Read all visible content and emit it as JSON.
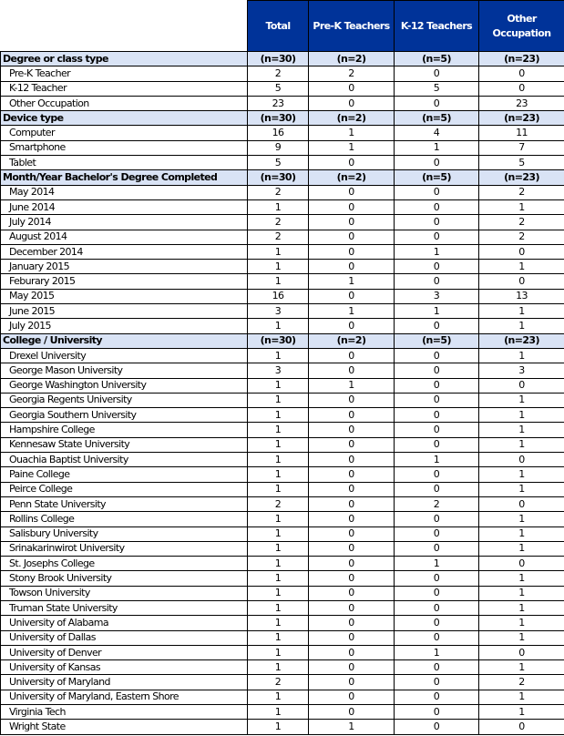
{
  "colors": {
    "header_bg": "#003399",
    "section_bg": "#d9e3f5"
  },
  "columns": [
    "Total",
    "Pre-K Teachers",
    "K-12  Teachers",
    "Other Occupation"
  ],
  "sections": [
    {
      "title": "Degree or class type",
      "counts": [
        "(n=30)",
        "(n=2)",
        "(n=5)",
        "(n=23)"
      ],
      "rows": [
        [
          "Pre-K Teacher",
          "2",
          "2",
          "0",
          "0"
        ],
        [
          "K-12 Teacher",
          "5",
          "0",
          "5",
          "0"
        ],
        [
          "Other Occupation",
          "23",
          "0",
          "0",
          "23"
        ]
      ]
    },
    {
      "title": "Device type",
      "counts": [
        "(n=30)",
        "(n=2)",
        "(n=5)",
        "(n=23)"
      ],
      "rows": [
        [
          "Computer",
          "16",
          "1",
          "4",
          "11"
        ],
        [
          "Smartphone",
          "9",
          "1",
          "1",
          "7"
        ],
        [
          "Tablet",
          "5",
          "0",
          "0",
          "5"
        ]
      ]
    },
    {
      "title": "Month/Year Bachelor's Degree Completed",
      "counts": [
        "(n=30)",
        "(n=2)",
        "(n=5)",
        "(n=23)"
      ],
      "rows": [
        [
          "May 2014",
          "2",
          "0",
          "0",
          "2"
        ],
        [
          "June 2014",
          "1",
          "0",
          "0",
          "1"
        ],
        [
          "July 2014",
          "2",
          "0",
          "0",
          "2"
        ],
        [
          "August 2014",
          "2",
          "0",
          "0",
          "2"
        ],
        [
          "December 2014",
          "1",
          "0",
          "1",
          "0"
        ],
        [
          "January 2015",
          "1",
          "0",
          "0",
          "1"
        ],
        [
          "Feburary 2015",
          "1",
          "1",
          "0",
          "0"
        ],
        [
          "May 2015",
          "16",
          "0",
          "3",
          "13"
        ],
        [
          "June 2015",
          "3",
          "1",
          "1",
          "1"
        ],
        [
          "July 2015",
          "1",
          "0",
          "0",
          "1"
        ]
      ]
    },
    {
      "title": "College /  University",
      "counts": [
        "(n=30)",
        "(n=2)",
        "(n=5)",
        "(n=23)"
      ],
      "rows": [
        [
          "Drexel University",
          "1",
          "0",
          "0",
          "1"
        ],
        [
          "George Mason University",
          "3",
          "0",
          "0",
          "3"
        ],
        [
          "George Washington University",
          "1",
          "1",
          "0",
          "0"
        ],
        [
          "Georgia Regents University",
          "1",
          "0",
          "0",
          "1"
        ],
        [
          "Georgia Southern University",
          "1",
          "0",
          "0",
          "1"
        ],
        [
          "Hampshire College",
          "1",
          "0",
          "0",
          "1"
        ],
        [
          "Kennesaw State University",
          "1",
          "0",
          "0",
          "1"
        ],
        [
          "Ouachia Baptist University",
          "1",
          "0",
          "1",
          "0"
        ],
        [
          "Paine College",
          "1",
          "0",
          "0",
          "1"
        ],
        [
          "Peirce College",
          "1",
          "0",
          "0",
          "1"
        ],
        [
          "Penn State University",
          "2",
          "0",
          "2",
          "0"
        ],
        [
          "Rollins College",
          "1",
          "0",
          "0",
          "1"
        ],
        [
          "Salisbury University",
          "1",
          "0",
          "0",
          "1"
        ],
        [
          "Srinakarinwirot University",
          "1",
          "0",
          "0",
          "1"
        ],
        [
          "St. Josephs College",
          "1",
          "0",
          "1",
          "0"
        ],
        [
          "Stony Brook University",
          "1",
          "0",
          "0",
          "1"
        ],
        [
          "Towson University",
          "1",
          "0",
          "0",
          "1"
        ],
        [
          "Truman State University",
          "1",
          "0",
          "0",
          "1"
        ],
        [
          "University of Alabama",
          "1",
          "0",
          "0",
          "1"
        ],
        [
          "University of Dallas",
          "1",
          "0",
          "0",
          "1"
        ],
        [
          "University of Denver",
          "1",
          "0",
          "1",
          "0"
        ],
        [
          "University of Kansas",
          "1",
          "0",
          "0",
          "1"
        ],
        [
          "University of Maryland",
          "2",
          "0",
          "0",
          "2"
        ],
        [
          "University of Maryland, Eastern Shore",
          "1",
          "0",
          "0",
          "1"
        ],
        [
          "Virginia Tech",
          "1",
          "0",
          "0",
          "1"
        ],
        [
          "Wright State",
          "1",
          "1",
          "0",
          "0"
        ]
      ]
    }
  ]
}
